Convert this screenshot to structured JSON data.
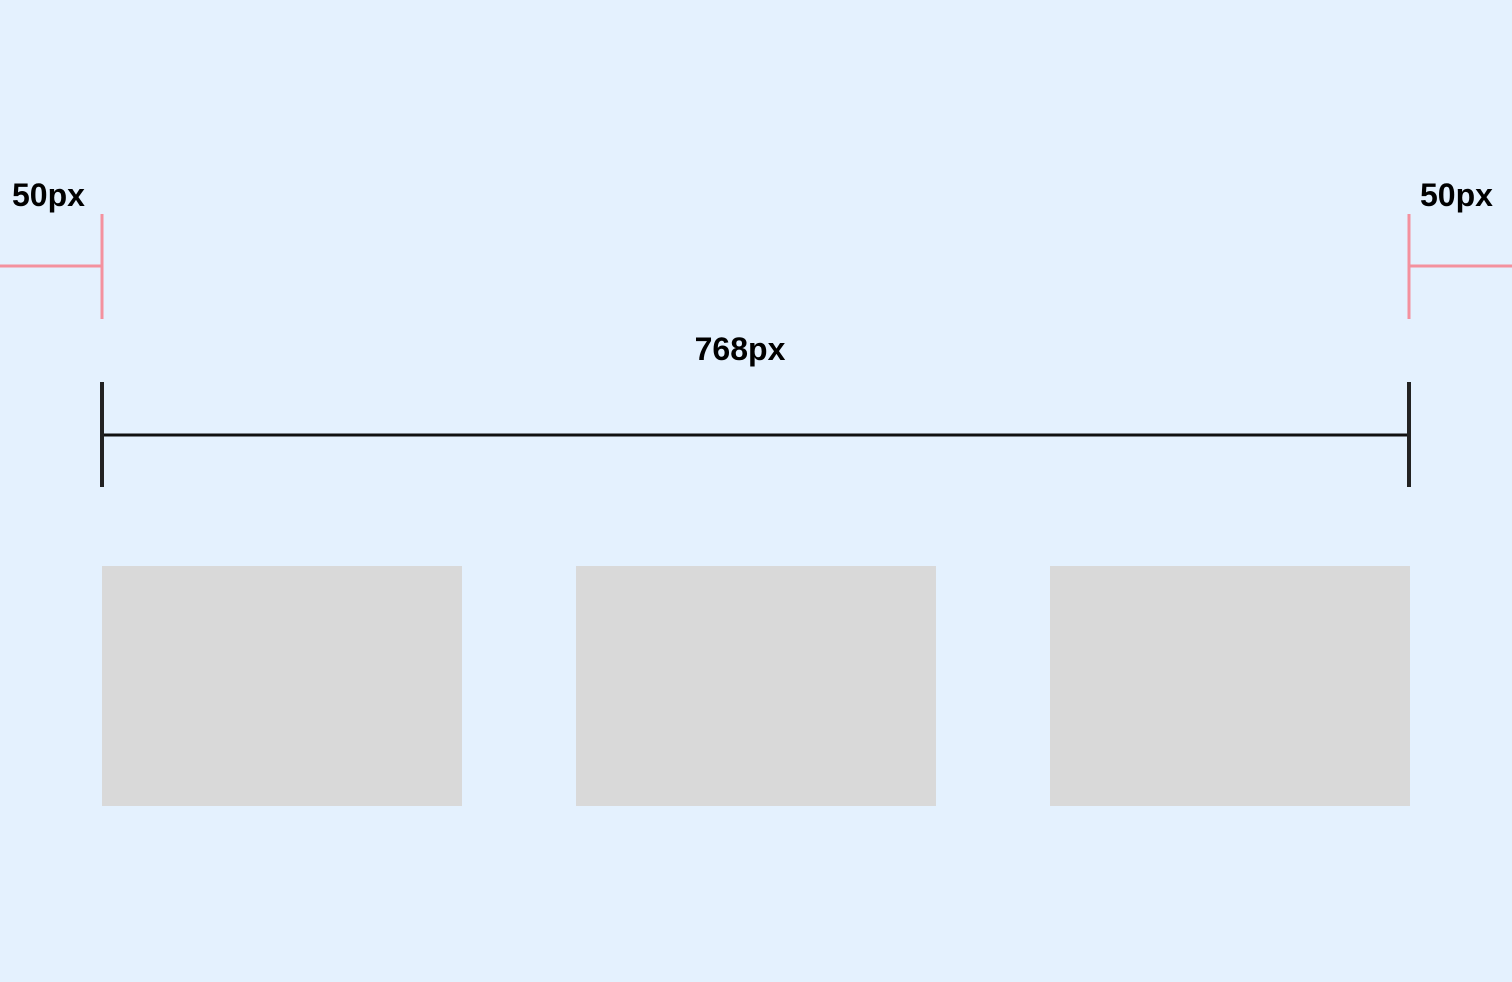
{
  "margins": {
    "left": {
      "label": "50px"
    },
    "right": {
      "label": "50px"
    }
  },
  "content": {
    "label": "768px"
  }
}
